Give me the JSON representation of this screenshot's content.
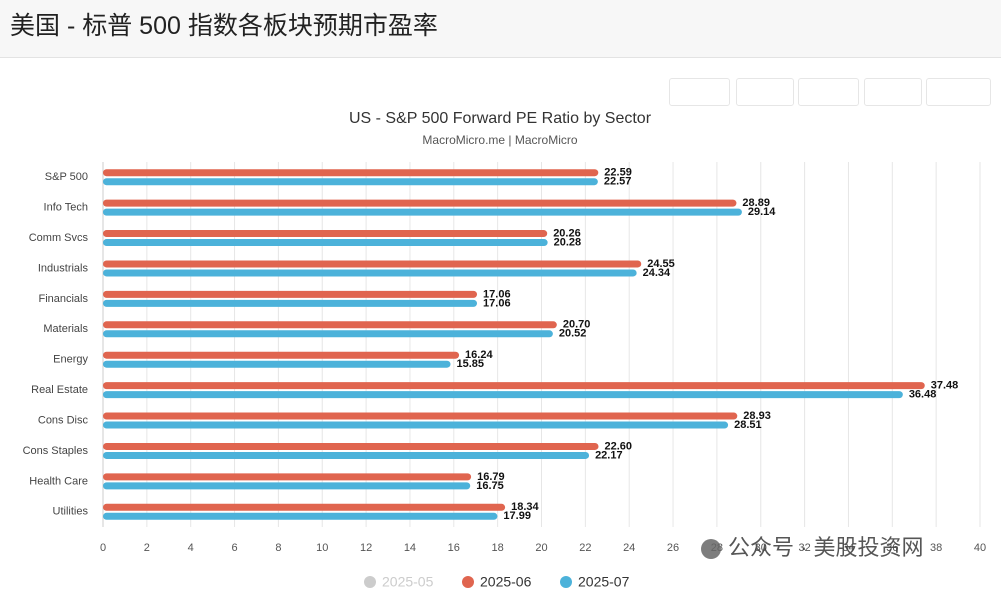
{
  "page_title": "美国 - 标普 500 指数各板块预期市盈率",
  "watermark": "公众号 · 美股投资网",
  "chart_data": {
    "type": "bar",
    "orientation": "horizontal",
    "title": "US - S&P 500 Forward PE Ratio by Sector",
    "subtitle": "MacroMicro.me | MacroMicro",
    "categories": [
      "S&P 500",
      "Info Tech",
      "Comm Svcs",
      "Industrials",
      "Financials",
      "Materials",
      "Energy",
      "Real Estate",
      "Cons Disc",
      "Cons Staples",
      "Health Care",
      "Utilities"
    ],
    "series": [
      {
        "name": "2025-05",
        "color": "#cccccc",
        "visible": false,
        "values": [
          null,
          null,
          null,
          null,
          null,
          null,
          null,
          null,
          null,
          null,
          null,
          null
        ]
      },
      {
        "name": "2025-06",
        "color": "#e0654f",
        "visible": true,
        "values": [
          22.59,
          28.89,
          20.26,
          24.55,
          17.06,
          20.7,
          16.24,
          37.48,
          28.93,
          22.6,
          16.79,
          18.34
        ],
        "value_labels": [
          "22.59",
          "28.89",
          "20.26",
          "24.55",
          "17.06",
          "20.70",
          "16.24",
          "37.48",
          "28.93",
          "22.60",
          "16.79",
          "18.34"
        ]
      },
      {
        "name": "2025-07",
        "color": "#4cb2da",
        "visible": true,
        "values": [
          22.57,
          29.14,
          20.28,
          24.34,
          17.06,
          20.52,
          15.85,
          36.48,
          28.51,
          22.17,
          16.75,
          17.99
        ],
        "value_labels": [
          "22.57",
          "29.14",
          "20.28",
          "24.34",
          "17.06",
          "20.52",
          "15.85",
          "36.48",
          "28.51",
          "22.17",
          "16.75",
          "17.99"
        ]
      }
    ],
    "xlim": [
      0,
      40
    ],
    "xticks": [
      0,
      2,
      4,
      6,
      8,
      10,
      12,
      14,
      16,
      18,
      20,
      22,
      24,
      26,
      28,
      30,
      32,
      34,
      36,
      38,
      40
    ],
    "grid": true,
    "legend": "bottom"
  }
}
